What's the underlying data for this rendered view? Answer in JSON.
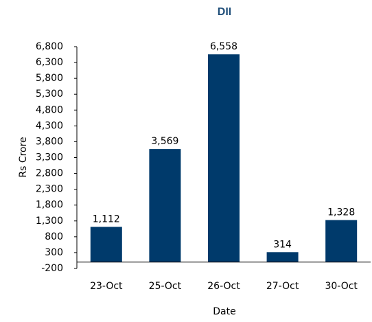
{
  "chart_data": {
    "type": "bar",
    "title": "DII",
    "x_label": "Date",
    "y_label": "Rs Crore",
    "categories": [
      "23-Oct",
      "25-Oct",
      "26-Oct",
      "27-Oct",
      "30-Oct"
    ],
    "values": [
      1112,
      3569,
      6558,
      314,
      1328
    ],
    "value_labels": [
      "1,112",
      "3,569",
      "6,558",
      "314",
      "1,328"
    ],
    "color": "#003a6b",
    "ylim": [
      -200,
      6800
    ],
    "yticks": [
      -200,
      300,
      800,
      {
        "value": 1300,
        "label": "1,300"
      },
      {
        "value": 1800,
        "label": "1,800"
      },
      {
        "value": 2300,
        "label": "2,300"
      },
      {
        "value": 2800,
        "label": "2,800"
      },
      {
        "value": 3300,
        "label": "3,300"
      },
      {
        "value": 3800,
        "label": "3,800"
      },
      {
        "value": 4300,
        "label": "4,300"
      },
      {
        "value": 4800,
        "label": "4,800"
      },
      {
        "value": 5300,
        "label": "5,300"
      },
      {
        "value": 5800,
        "label": "5,800"
      },
      {
        "value": 6300,
        "label": "6,300"
      },
      {
        "value": 6800,
        "label": "6,800"
      }
    ],
    "grid": false
  }
}
